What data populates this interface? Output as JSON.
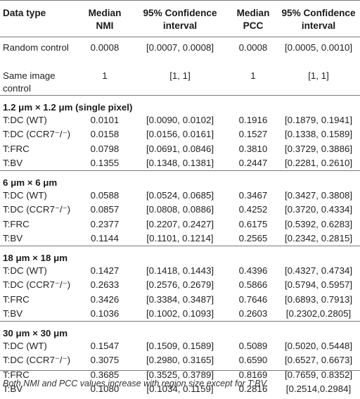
{
  "headers": {
    "data_type": "Data type",
    "median_nmi": "Median NMI",
    "ci_nmi": "95% Confidence interval",
    "median_pcc": "Median PCC",
    "ci_pcc": "95% Confidence interval"
  },
  "controls": [
    {
      "label": "Random control",
      "nmi": "0.0008",
      "nmi_ci": "[0.0007, 0.0008]",
      "pcc": "0.0008",
      "pcc_ci": "[0.0005, 0.0010]"
    },
    {
      "label": "Same image control",
      "nmi": "1",
      "nmi_ci": "[1, 1]",
      "pcc": "1",
      "pcc_ci": "[1, 1]"
    }
  ],
  "sections": [
    {
      "title": "1.2 μm × 1.2 μm (single pixel)",
      "rows": [
        {
          "label": "T:DC (WT)",
          "nmi": "0.0101",
          "nmi_ci": "[0.0090, 0.0102]",
          "pcc": "0.1916",
          "pcc_ci": "[0.1879, 0.1941]"
        },
        {
          "label": "T:DC (CCR7⁻/⁻)",
          "nmi": "0.0158",
          "nmi_ci": "[0.0156, 0.0161]",
          "pcc": "0.1527",
          "pcc_ci": "[0.1338, 0.1589]"
        },
        {
          "label": "T:FRC",
          "nmi": "0.0798",
          "nmi_ci": "[0.0691, 0.0846]",
          "pcc": "0.3810",
          "pcc_ci": "[0.3729, 0.3886]"
        },
        {
          "label": "T:BV",
          "nmi": "0.1355",
          "nmi_ci": "[0.1348, 0.1381]",
          "pcc": "0.2447",
          "pcc_ci": "[0.2281, 0.2610]"
        }
      ]
    },
    {
      "title": "6 μm × 6 μm",
      "rows": [
        {
          "label": "T:DC (WT)",
          "nmi": "0.0588",
          "nmi_ci": "[0.0524, 0.0685]",
          "pcc": "0.3467",
          "pcc_ci": "[0.3427, 0.3808]"
        },
        {
          "label": "T:DC (CCR7⁻/⁻)",
          "nmi": "0.0857",
          "nmi_ci": "[0.0808, 0.0886]",
          "pcc": "0.4252",
          "pcc_ci": "[0.3720, 0.4334]"
        },
        {
          "label": "T:FRC",
          "nmi": "0.2377",
          "nmi_ci": "[0.2207, 0.2427]",
          "pcc": "0.6175",
          "pcc_ci": "[0.5392, 0.6283]"
        },
        {
          "label": "T:BV",
          "nmi": "0.1144",
          "nmi_ci": "[0.1101, 0.1214]",
          "pcc": "0.2565",
          "pcc_ci": "[0.2342, 0.2815]"
        }
      ]
    },
    {
      "title": "18 μm × 18 μm",
      "rows": [
        {
          "label": "T:DC (WT)",
          "nmi": "0.1427",
          "nmi_ci": "[0.1418, 0.1443]",
          "pcc": "0.4396",
          "pcc_ci": "[0.4327, 0.4734]"
        },
        {
          "label": "T:DC (CCR7⁻/⁻)",
          "nmi": "0.2633",
          "nmi_ci": "[0.2576, 0.2679]",
          "pcc": "0.5866",
          "pcc_ci": "[0.5794, 0.5957]"
        },
        {
          "label": "T:FRC",
          "nmi": "0.3426",
          "nmi_ci": "[0.3384, 0.3487]",
          "pcc": "0.7646",
          "pcc_ci": "[0.6893, 0.7913]"
        },
        {
          "label": "T:BV",
          "nmi": "0.1036",
          "nmi_ci": "[0.1002, 0.1093]",
          "pcc": "0.2603",
          "pcc_ci": "[0.2302,0.2805]"
        }
      ]
    },
    {
      "title": "30 μm × 30 μm",
      "rows": [
        {
          "label": "T:DC (WT)",
          "nmi": "0.1547",
          "nmi_ci": "[0.1509, 0.1589]",
          "pcc": "0.5089",
          "pcc_ci": "[0.5020, 0.5448]"
        },
        {
          "label": "T:DC (CCR7⁻/⁻)",
          "nmi": "0.3075",
          "nmi_ci": "[0.2980, 0.3165]",
          "pcc": "0.6590",
          "pcc_ci": "[0.6527, 0.6673]"
        },
        {
          "label": "T:FRC",
          "nmi": "0.3685",
          "nmi_ci": "[0.3525, 0.3789]",
          "pcc": "0.8169",
          "pcc_ci": "[0.7659, 0.8352]"
        },
        {
          "label": "T:BV",
          "nmi": "0.1080",
          "nmi_ci": "[0.1034, 0.1159]",
          "pcc": "0.2816",
          "pcc_ci": "[0.2514,0.2984]"
        }
      ]
    }
  ],
  "footnote": "Both NMI and PCC values increase with region size except for T:BV."
}
